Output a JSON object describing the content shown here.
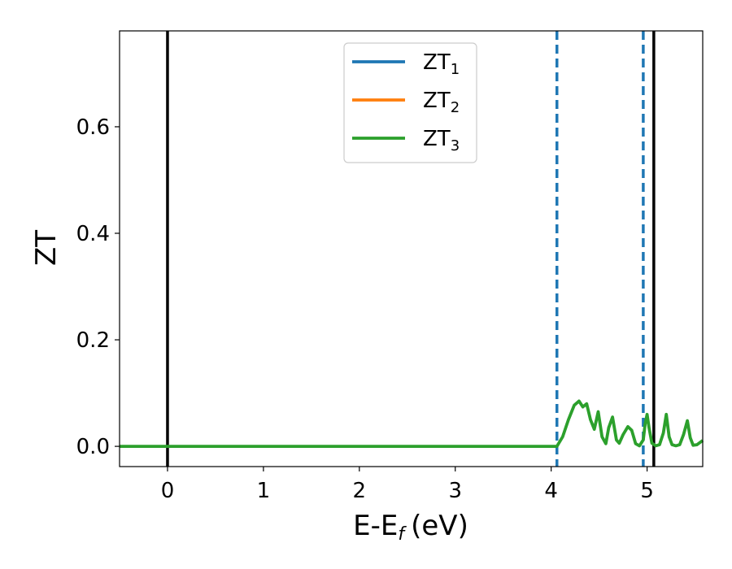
{
  "chart_data": {
    "type": "line",
    "xlabel": "E-E",
    "xlabel_subscript": "f",
    "xlabel_unit": "(eV)",
    "ylabel": "ZT",
    "xlim": [
      -0.5,
      5.58
    ],
    "ylim": [
      -0.038,
      0.78
    ],
    "xticks": [
      0,
      1,
      2,
      3,
      4,
      5
    ],
    "xtick_labels": [
      "0",
      "1",
      "2",
      "3",
      "4",
      "5"
    ],
    "yticks": [
      0.0,
      0.2,
      0.4,
      0.6
    ],
    "ytick_labels": [
      "0.0",
      "0.2",
      "0.4",
      "0.6"
    ],
    "legend_position": "top-center",
    "grid": false,
    "vlines": [
      {
        "x": 0.0,
        "style": "solid",
        "color": "#000000"
      },
      {
        "x": 5.07,
        "style": "solid",
        "color": "#000000"
      },
      {
        "x": 4.06,
        "style": "dashed",
        "color": "#1f77b4"
      },
      {
        "x": 4.96,
        "style": "dashed",
        "color": "#1f77b4"
      }
    ],
    "series": [
      {
        "name": "ZT",
        "subscript": "1",
        "color": "#1f77b4",
        "x": [],
        "y": []
      },
      {
        "name": "ZT",
        "subscript": "2",
        "color": "#ff7f0e",
        "x": [],
        "y": []
      },
      {
        "name": "ZT",
        "subscript": "3",
        "color": "#2ca02c",
        "x": [
          -0.5,
          4.06,
          4.12,
          4.18,
          4.24,
          4.29,
          4.33,
          4.37,
          4.41,
          4.45,
          4.49,
          4.53,
          4.57,
          4.6,
          4.64,
          4.68,
          4.71,
          4.75,
          4.8,
          4.84,
          4.88,
          4.92,
          4.96,
          4.98,
          5.0,
          5.02,
          5.05,
          5.09,
          5.13,
          5.17,
          5.2,
          5.23,
          5.26,
          5.3,
          5.34,
          5.38,
          5.42,
          5.45,
          5.48,
          5.52,
          5.58
        ],
        "y": [
          0.0,
          0.0,
          0.018,
          0.05,
          0.077,
          0.085,
          0.074,
          0.08,
          0.05,
          0.032,
          0.065,
          0.018,
          0.005,
          0.035,
          0.055,
          0.012,
          0.006,
          0.022,
          0.037,
          0.03,
          0.005,
          0.001,
          0.012,
          0.042,
          0.06,
          0.035,
          0.006,
          0.001,
          0.003,
          0.025,
          0.06,
          0.018,
          0.003,
          0.001,
          0.003,
          0.022,
          0.048,
          0.016,
          0.002,
          0.003,
          0.011
        ]
      }
    ]
  }
}
